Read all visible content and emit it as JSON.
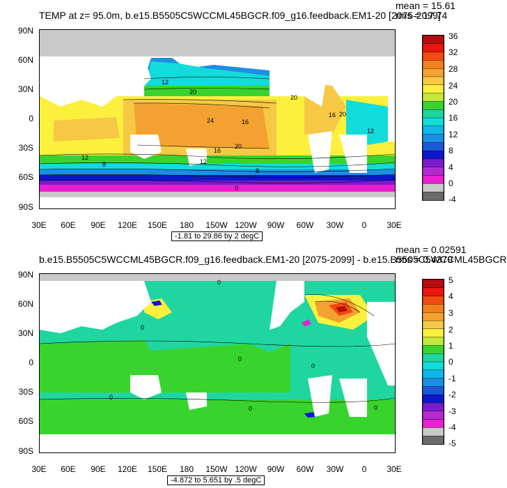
{
  "top": {
    "title": "TEMP at z=  95.0m, b.e15.B5505C5WCCML45BGCR.f09_g16.feedback.EM1-20 [2075-2099]",
    "mean": "mean = 15.61",
    "rms": "rms = 17.74",
    "range": "-1.81 to 29.86 by 2 degC",
    "lat_labels": [
      "90N",
      "60N",
      "30N",
      "0",
      "30S",
      "60S",
      "90S"
    ],
    "lon_labels": [
      "30E",
      "60E",
      "90E",
      "120E",
      "150E",
      "180",
      "150W",
      "120W",
      "90W",
      "60W",
      "30W",
      "0",
      "30E"
    ],
    "colorbar_labels": [
      "36",
      "32",
      "28",
      "24",
      "20",
      "16",
      "12",
      "8",
      "4",
      "0",
      "-4"
    ],
    "colorbar_colors": [
      "#b40e0e",
      "#e8160e",
      "#f24a11",
      "#f57f1d",
      "#f3a232",
      "#f6c844",
      "#fbf03c",
      "#c2e83b",
      "#39d32e",
      "#1fd6a0",
      "#12dbdb",
      "#0fb6e8",
      "#1b8fe3",
      "#1d57d9",
      "#0d18c9",
      "#7a1ccd",
      "#b42ad2",
      "#e91fd1",
      "#c9c9c9",
      "#6a6a6a"
    ],
    "contour_labels": [
      "20",
      "24",
      "16",
      "20",
      "12",
      "8",
      "12",
      "16",
      "20",
      "16",
      "12",
      "8",
      "20",
      "12",
      "0"
    ]
  },
  "bottom": {
    "title": "b.e15.B5505C5WCCML45BGCR.f09_g16.feedback.EM1-20 [2075-2099] - b.e15.B5505C5WCCML45BGCR",
    "mean": "mean = 0.02591",
    "rms": "rms = 0.4379",
    "range": "-4.872 to 5.651 by .5 degC",
    "lat_labels": [
      "90N",
      "60N",
      "30N",
      "0",
      "30S",
      "60S",
      "90S"
    ],
    "lon_labels": [
      "30E",
      "60E",
      "90E",
      "120E",
      "150E",
      "180",
      "150W",
      "120W",
      "90W",
      "60W",
      "30W",
      "0",
      "30E"
    ],
    "colorbar_labels": [
      "5",
      "4",
      "3",
      "2",
      "1",
      "0",
      "-1",
      "-2",
      "-3",
      "-4",
      "-5"
    ],
    "colorbar_colors": [
      "#b40e0e",
      "#e8160e",
      "#f24a11",
      "#f57f1d",
      "#f3a232",
      "#f6c844",
      "#fbf03c",
      "#c2e83b",
      "#39d32e",
      "#1fd6a0",
      "#12dbdb",
      "#0fb6e8",
      "#1b8fe3",
      "#1d57d9",
      "#0d18c9",
      "#7a1ccd",
      "#b42ad2",
      "#e91fd1",
      "#c9c9c9",
      "#6a6a6a"
    ],
    "contour_labels": [
      "0",
      "0",
      "0",
      "0",
      "0",
      "0",
      "0"
    ]
  }
}
